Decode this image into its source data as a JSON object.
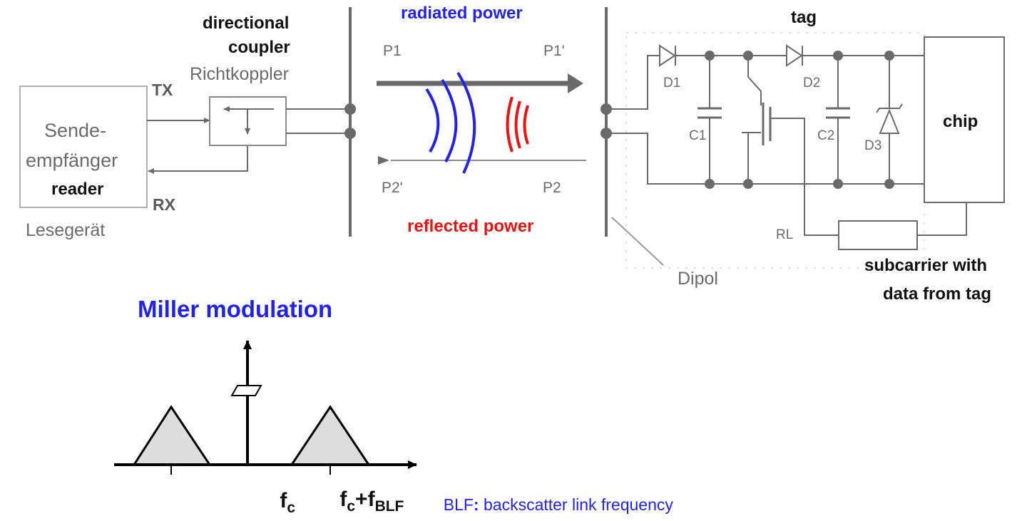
{
  "reader": {
    "box_label_line1": "Sende-",
    "box_label_line2": "empfänger",
    "box_label_en": "reader",
    "caption": "Lesegerät",
    "tx": "TX",
    "rx": "RX"
  },
  "coupler": {
    "en_line1": "directional",
    "en_line2": "coupler",
    "de": "Richtkoppler"
  },
  "channel": {
    "radiated": "radiated power",
    "reflected": "reflected power",
    "p1": "P1",
    "p1_prime": "P1'",
    "p2": "P2",
    "p2_prime": "P2'",
    "colors": {
      "radiated": "#2222ee",
      "reflected": "#ee1111"
    }
  },
  "tag": {
    "title": "tag",
    "d1": "D1",
    "d2": "D2",
    "d3": "D3",
    "c1": "C1",
    "c2": "C2",
    "rl": "RL",
    "chip": "chip",
    "dipol": "Dipol",
    "subcarrier_line1": "subcarrier with",
    "subcarrier_line2": "data from tag"
  },
  "spectrum": {
    "title": "Miller modulation",
    "fc_main": "f",
    "fc_sub": "c",
    "fblf_f": "f",
    "fblf_c": "c",
    "fblf_plus": "+f",
    "fblf_sub": "BLF",
    "note_abbr": "BLF",
    "note_colon": ":",
    "note_text": " backscatter link frequency",
    "title_color": "#2222ee"
  }
}
